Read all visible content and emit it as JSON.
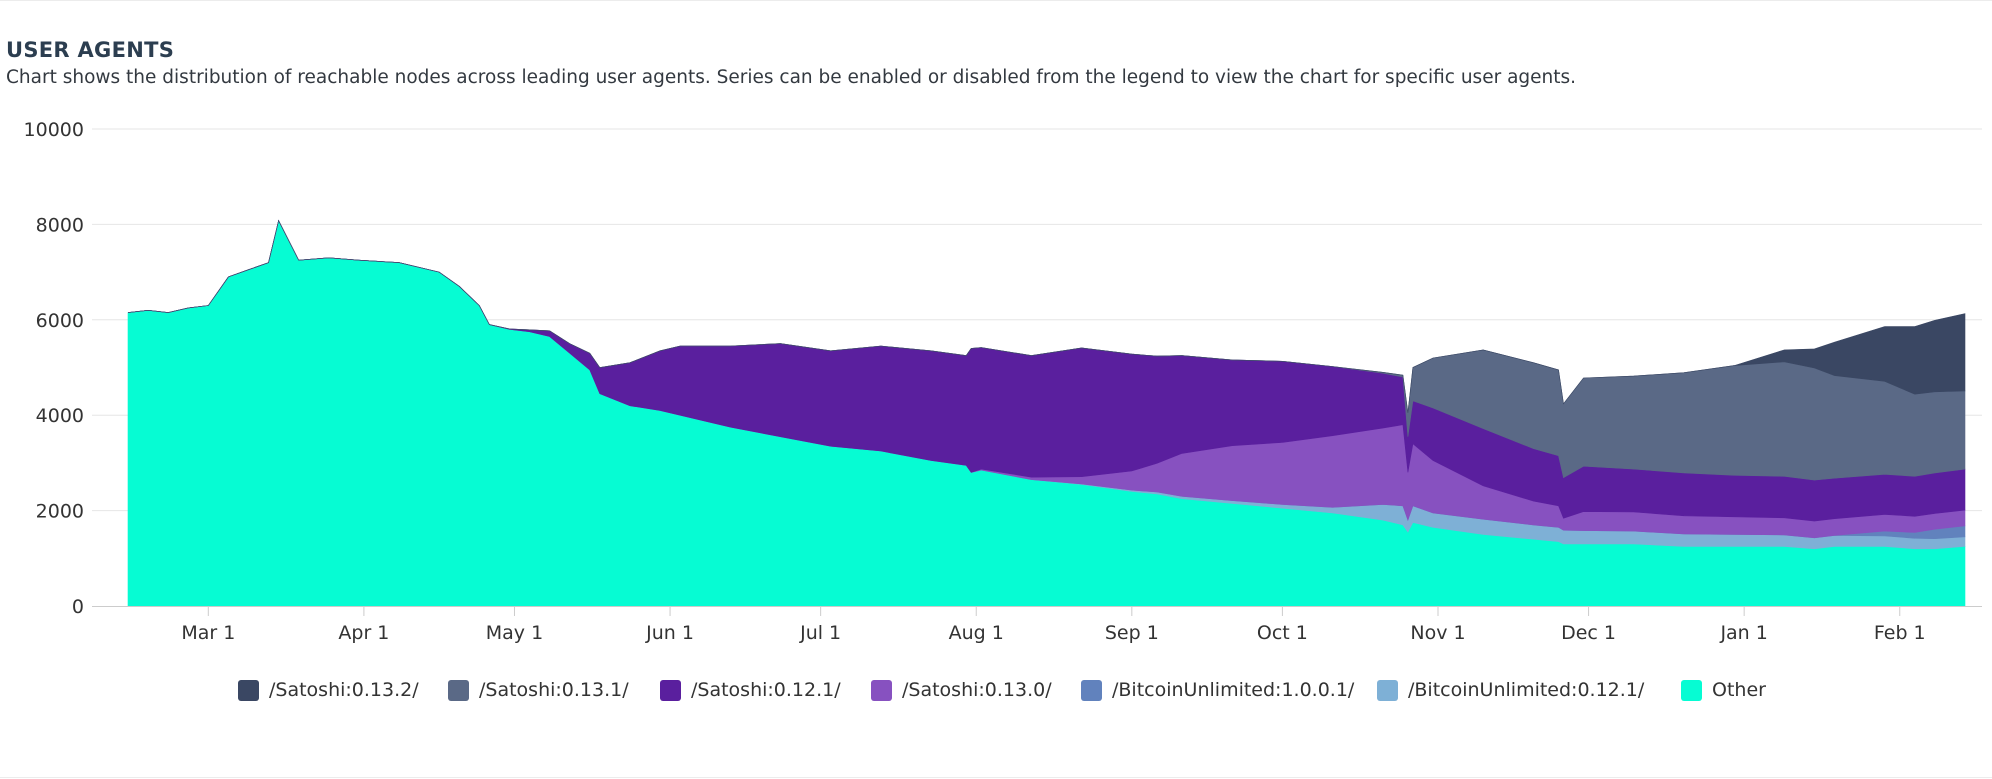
{
  "header": {
    "title": "USER AGENTS",
    "description": "Chart shows the distribution of reachable nodes across leading user agents. Series can be enabled or disabled from the legend to view the chart for specific user agents."
  },
  "chart_data": {
    "type": "area",
    "stacked": true,
    "title": "USER AGENTS",
    "xlabel": "",
    "ylabel": "",
    "ylim": [
      0,
      10000
    ],
    "yticks": [
      0,
      2000,
      4000,
      6000,
      8000,
      10000
    ],
    "xticks": [
      {
        "label": "Mar 1",
        "x": 16
      },
      {
        "label": "Apr 1",
        "x": 47
      },
      {
        "label": "May 1",
        "x": 77
      },
      {
        "label": "Jun 1",
        "x": 108
      },
      {
        "label": "Jul 1",
        "x": 138
      },
      {
        "label": "Aug 1",
        "x": 169
      },
      {
        "label": "Sep 1",
        "x": 200
      },
      {
        "label": "Oct 1",
        "x": 230
      },
      {
        "label": "Nov 1",
        "x": 261
      },
      {
        "label": "Dec 1",
        "x": 291
      },
      {
        "label": "Jan 1",
        "x": 322
      },
      {
        "label": "Feb 1",
        "x": 353
      }
    ],
    "x_unit": "days from Feb 13",
    "xlim": [
      0,
      366
    ],
    "grid": true,
    "legend_position": "bottom",
    "x": [
      0,
      4,
      8,
      12,
      16,
      20,
      24,
      28,
      30,
      34,
      40,
      46,
      54,
      62,
      66,
      70,
      72,
      76,
      80,
      84,
      88,
      92,
      94,
      100,
      106,
      110,
      120,
      130,
      140,
      150,
      160,
      167,
      168,
      170,
      180,
      190,
      200,
      205,
      210,
      220,
      230,
      240,
      250,
      254,
      255,
      256,
      260,
      270,
      280,
      285,
      286,
      290,
      300,
      310,
      320,
      330,
      336,
      340,
      350,
      356,
      360,
      366
    ],
    "series": [
      {
        "name": "Other",
        "color": "#06fcd3",
        "values": [
          6150,
          6200,
          6150,
          6250,
          6300,
          6900,
          7050,
          7200,
          8080,
          7250,
          7300,
          7250,
          7200,
          7000,
          6700,
          6300,
          5900,
          5800,
          5750,
          5650,
          5300,
          4950,
          4450,
          4200,
          4100,
          4000,
          3750,
          3550,
          3350,
          3250,
          3050,
          2950,
          2800,
          2850,
          2650,
          2550,
          2400,
          2350,
          2250,
          2150,
          2050,
          1950,
          1800,
          1700,
          1550,
          1750,
          1650,
          1500,
          1400,
          1350,
          1300,
          1300,
          1300,
          1250,
          1250,
          1250,
          1200,
          1250,
          1250,
          1200,
          1200,
          1250
        ]
      },
      {
        "name": "/BitcoinUnlimited:0.12.1/",
        "color": "#7eb0d6",
        "values": [
          0,
          0,
          0,
          0,
          0,
          0,
          0,
          0,
          0,
          0,
          0,
          0,
          0,
          0,
          0,
          0,
          0,
          0,
          0,
          0,
          0,
          0,
          0,
          0,
          0,
          0,
          0,
          0,
          0,
          0,
          0,
          0,
          0,
          0,
          0,
          10,
          30,
          40,
          50,
          60,
          80,
          120,
          330,
          400,
          250,
          350,
          300,
          320,
          300,
          300,
          290,
          280,
          270,
          260,
          250,
          240,
          230,
          230,
          220,
          220,
          210,
          200
        ]
      },
      {
        "name": "/BitcoinUnlimited:1.0.0.1/",
        "color": "#6182bd",
        "values": [
          0,
          0,
          0,
          0,
          0,
          0,
          0,
          0,
          0,
          0,
          0,
          0,
          0,
          0,
          0,
          0,
          0,
          0,
          0,
          0,
          0,
          0,
          0,
          0,
          0,
          0,
          0,
          0,
          0,
          0,
          0,
          0,
          0,
          0,
          0,
          0,
          0,
          0,
          0,
          0,
          0,
          0,
          0,
          0,
          0,
          0,
          0,
          0,
          0,
          0,
          0,
          0,
          0,
          0,
          0,
          0,
          0,
          0,
          100,
          120,
          200,
          230
        ]
      },
      {
        "name": "/Satoshi:0.13.0/",
        "color": "#8751c0",
        "values": [
          0,
          0,
          0,
          0,
          0,
          0,
          0,
          0,
          0,
          0,
          0,
          0,
          0,
          0,
          0,
          0,
          0,
          0,
          0,
          0,
          0,
          0,
          0,
          0,
          0,
          0,
          0,
          0,
          0,
          0,
          0,
          0,
          0,
          20,
          50,
          150,
          400,
          600,
          900,
          1150,
          1300,
          1500,
          1600,
          1700,
          1000,
          1300,
          1100,
          700,
          500,
          450,
          250,
          400,
          400,
          380,
          370,
          360,
          350,
          350,
          350,
          340,
          330,
          330
        ]
      },
      {
        "name": "/Satoshi:0.12.1/",
        "color": "#5a1f9e",
        "values": [
          0,
          0,
          0,
          0,
          0,
          0,
          0,
          0,
          0,
          0,
          0,
          0,
          0,
          0,
          0,
          0,
          0,
          10,
          40,
          120,
          200,
          350,
          550,
          900,
          1250,
          1450,
          1700,
          1950,
          2000,
          2200,
          2300,
          2300,
          2600,
          2550,
          2550,
          2700,
          2450,
          2250,
          2050,
          1800,
          1700,
          1450,
          1150,
          1000,
          750,
          900,
          1100,
          1200,
          1100,
          1050,
          850,
          950,
          900,
          900,
          870,
          870,
          860,
          850,
          840,
          840,
          850,
          860
        ]
      },
      {
        "name": "/Satoshi:0.13.1/",
        "color": "#5a6986",
        "values": [
          0,
          0,
          0,
          0,
          0,
          0,
          0,
          0,
          0,
          0,
          0,
          0,
          0,
          0,
          0,
          0,
          0,
          0,
          0,
          0,
          0,
          0,
          0,
          0,
          0,
          0,
          0,
          0,
          0,
          0,
          0,
          0,
          0,
          0,
          0,
          0,
          0,
          0,
          0,
          0,
          0,
          0,
          20,
          40,
          500,
          700,
          1050,
          1650,
          1800,
          1800,
          1550,
          1850,
          1950,
          2100,
          2300,
          2400,
          2350,
          2150,
          1950,
          1720,
          1700,
          1640
        ]
      },
      {
        "name": "/Satoshi:0.13.2/",
        "color": "#3a4763",
        "values": [
          0,
          0,
          0,
          0,
          0,
          0,
          0,
          0,
          0,
          0,
          0,
          0,
          0,
          0,
          0,
          0,
          0,
          0,
          0,
          0,
          0,
          0,
          0,
          0,
          0,
          0,
          0,
          0,
          0,
          0,
          0,
          0,
          0,
          0,
          0,
          0,
          0,
          0,
          0,
          0,
          0,
          0,
          0,
          0,
          0,
          0,
          0,
          0,
          0,
          0,
          0,
          0,
          0,
          0,
          0,
          250,
          400,
          700,
          1150,
          1420,
          1500,
          1620
        ]
      }
    ]
  },
  "legend": [
    {
      "label": "/Satoshi:0.13.2/",
      "color": "#3a4763"
    },
    {
      "label": "/Satoshi:0.13.1/",
      "color": "#5a6986"
    },
    {
      "label": "/Satoshi:0.12.1/",
      "color": "#5a1f9e"
    },
    {
      "label": "/Satoshi:0.13.0/",
      "color": "#8751c0"
    },
    {
      "label": "/BitcoinUnlimited:1.0.0.1/",
      "color": "#6182bd"
    },
    {
      "label": "/BitcoinUnlimited:0.12.1/",
      "color": "#7eb0d6"
    },
    {
      "label": "Other",
      "color": "#06fcd3"
    }
  ]
}
